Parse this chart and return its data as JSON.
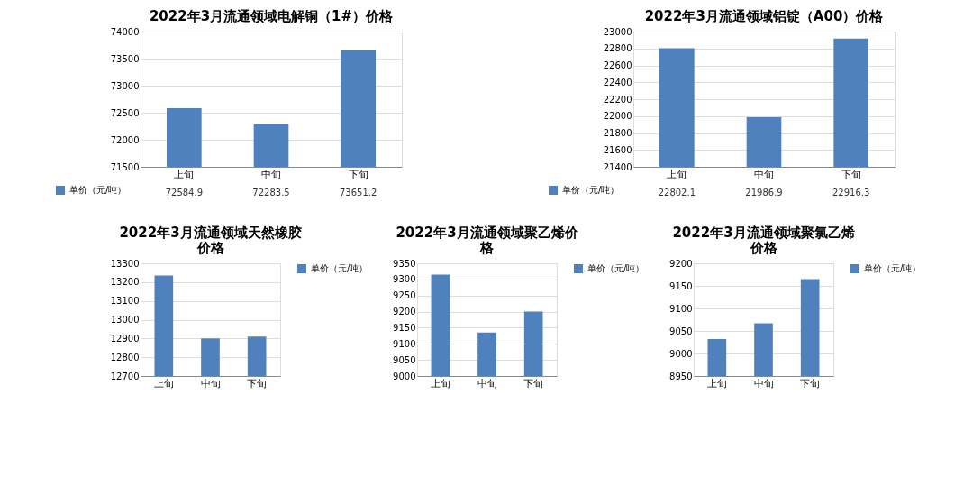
{
  "chart_data": [
    {
      "type": "bar",
      "title": "2022年3月流通领域电解铜（1#）价格",
      "categories": [
        "上旬",
        "中旬",
        "下旬"
      ],
      "series": [
        {
          "name": "单价（元/吨）",
          "color": "#4f81bd",
          "values": [
            72584.9,
            72283.5,
            73651.2
          ]
        }
      ],
      "ylim": [
        71500,
        74000
      ],
      "yticks": [
        71500,
        72000,
        72500,
        73000,
        73500,
        74000
      ],
      "grid": "y",
      "data_labels": true,
      "legend": "bottom left"
    },
    {
      "type": "bar",
      "title": "2022年3月流通领域铝锭（A00）价格",
      "categories": [
        "上旬",
        "中旬",
        "下旬"
      ],
      "series": [
        {
          "name": "单价（元/吨）",
          "color": "#4f81bd",
          "values": [
            22802.1,
            21986.9,
            22916.3
          ]
        }
      ],
      "ylim": [
        21400,
        23000
      ],
      "yticks": [
        21400,
        21600,
        21800,
        22000,
        22200,
        22400,
        22600,
        22800,
        23000
      ],
      "grid": "y",
      "data_labels": true,
      "legend": "bottom left"
    },
    {
      "type": "bar",
      "title": "2022年3月流通领域天然橡胶价格",
      "categories": [
        "上旬",
        "中旬",
        "下旬"
      ],
      "series": [
        {
          "name": "单价（元/吨）",
          "color": "#4f81bd",
          "values": [
            13235,
            12900,
            12910
          ]
        }
      ],
      "ylim": [
        12700,
        13300
      ],
      "yticks": [
        12700,
        12800,
        12900,
        13000,
        13100,
        13200,
        13300
      ],
      "grid": "y",
      "legend": "right"
    },
    {
      "type": "bar",
      "title": "2022年3月流通领域聚乙烯价格",
      "categories": [
        "上旬",
        "中旬",
        "下旬"
      ],
      "series": [
        {
          "name": "单价（元/吨）",
          "color": "#4f81bd",
          "values": [
            9315,
            9135,
            9200
          ]
        }
      ],
      "ylim": [
        9000,
        9350
      ],
      "yticks": [
        9000,
        9050,
        9100,
        9150,
        9200,
        9250,
        9300,
        9350
      ],
      "grid": "y",
      "legend": "right"
    },
    {
      "type": "bar",
      "title": "2022年3月流通领域聚氯乙烯价格",
      "categories": [
        "上旬",
        "中旬",
        "下旬"
      ],
      "series": [
        {
          "name": "单价（元/吨）",
          "color": "#4f81bd",
          "values": [
            9032,
            9067,
            9165
          ]
        }
      ],
      "ylim": [
        8950,
        9200
      ],
      "yticks": [
        8950,
        9000,
        9050,
        9100,
        9150,
        9200
      ],
      "grid": "y",
      "legend": "right"
    }
  ]
}
